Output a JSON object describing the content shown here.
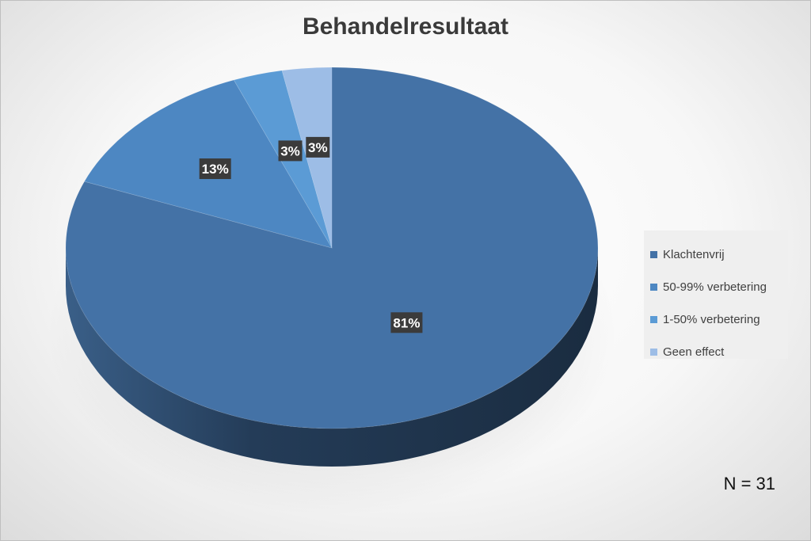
{
  "chart_data": {
    "type": "pie",
    "title": "Behandelresultaat",
    "categories": [
      "Klachtenvrij",
      "50-99% verbetering",
      "1-50% verbetering",
      "Geen effect"
    ],
    "values": [
      81,
      13,
      3,
      3
    ],
    "labels": [
      "81%",
      "13%",
      "3%",
      "3%"
    ],
    "colors": [
      "#4472a6",
      "#4d87c2",
      "#5b9bd5",
      "#9dbde6"
    ],
    "legend_position": "right",
    "note": "N = 31"
  }
}
